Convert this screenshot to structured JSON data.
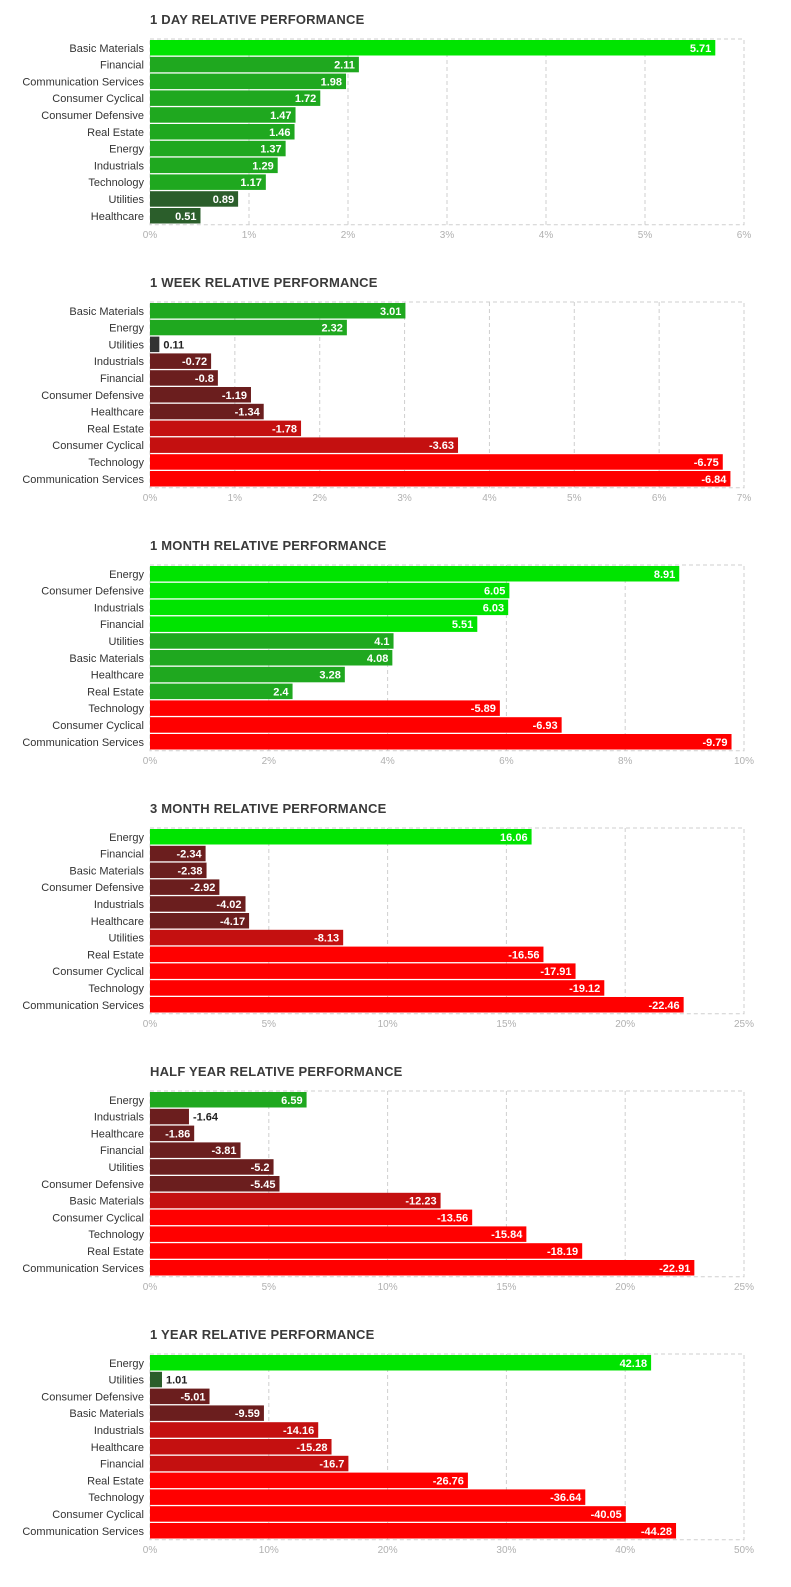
{
  "colors": {
    "pos_bright": "#00e400",
    "pos_mid": "#1fa81f",
    "pos_dark": "#2b5e2b",
    "neg_bright": "#ff0000",
    "neg_mid": "#c41010",
    "neg_dark": "#6b1e1e",
    "near_zero": "#333333",
    "grid": "#cfcfcf",
    "tick": "#b0b0b0"
  },
  "chart_data": [
    {
      "type": "bar",
      "orientation": "horizontal",
      "title": "1 DAY RELATIVE PERFORMANCE",
      "categories": [
        "Basic Materials",
        "Financial",
        "Communication Services",
        "Consumer Cyclical",
        "Consumer Defensive",
        "Real Estate",
        "Energy",
        "Industrials",
        "Technology",
        "Utilities",
        "Healthcare"
      ],
      "values": [
        5.71,
        2.11,
        1.98,
        1.72,
        1.47,
        1.46,
        1.37,
        1.29,
        1.17,
        0.89,
        0.51
      ],
      "value_labels": [
        "5.71",
        "2.11",
        "1.98",
        "1.72",
        "1.47",
        "1.46",
        "1.37",
        "1.29",
        "1.17",
        "0.89",
        "0.51"
      ],
      "xlim": [
        0,
        6
      ],
      "ticks": [
        "0%",
        "1%",
        "2%",
        "3%",
        "4%",
        "5%",
        "6%"
      ],
      "grid": true
    },
    {
      "type": "bar",
      "orientation": "horizontal",
      "title": "1 WEEK RELATIVE PERFORMANCE",
      "categories": [
        "Basic Materials",
        "Energy",
        "Utilities",
        "Industrials",
        "Financial",
        "Consumer Defensive",
        "Healthcare",
        "Real Estate",
        "Consumer Cyclical",
        "Technology",
        "Communication Services"
      ],
      "values": [
        3.01,
        2.32,
        0.11,
        -0.72,
        -0.8,
        -1.19,
        -1.34,
        -1.78,
        -3.63,
        -6.75,
        -6.84
      ],
      "value_labels": [
        "3.01",
        "2.32",
        "0.11",
        "-0.72",
        "-0.8",
        "-1.19",
        "-1.34",
        "-1.78",
        "-3.63",
        "-6.75",
        "-6.84"
      ],
      "xlim": [
        0,
        7
      ],
      "ticks": [
        "0%",
        "1%",
        "2%",
        "3%",
        "4%",
        "5%",
        "6%",
        "7%"
      ],
      "grid": true
    },
    {
      "type": "bar",
      "orientation": "horizontal",
      "title": "1 MONTH RELATIVE PERFORMANCE",
      "categories": [
        "Energy",
        "Consumer Defensive",
        "Industrials",
        "Financial",
        "Utilities",
        "Basic Materials",
        "Healthcare",
        "Real Estate",
        "Technology",
        "Consumer Cyclical",
        "Communication Services"
      ],
      "values": [
        8.91,
        6.05,
        6.03,
        5.51,
        4.1,
        4.08,
        3.28,
        2.4,
        -5.89,
        -6.93,
        -9.79
      ],
      "value_labels": [
        "8.91",
        "6.05",
        "6.03",
        "5.51",
        "4.1",
        "4.08",
        "3.28",
        "2.4",
        "-5.89",
        "-6.93",
        "-9.79"
      ],
      "xlim": [
        0,
        10
      ],
      "ticks": [
        "0%",
        "2%",
        "4%",
        "6%",
        "8%",
        "10%"
      ],
      "grid": true
    },
    {
      "type": "bar",
      "orientation": "horizontal",
      "title": "3 MONTH RELATIVE PERFORMANCE",
      "categories": [
        "Energy",
        "Financial",
        "Basic Materials",
        "Consumer Defensive",
        "Industrials",
        "Healthcare",
        "Utilities",
        "Real Estate",
        "Consumer Cyclical",
        "Technology",
        "Communication Services"
      ],
      "values": [
        16.06,
        -2.34,
        -2.38,
        -2.92,
        -4.02,
        -4.17,
        -8.13,
        -16.56,
        -17.91,
        -19.12,
        -22.46
      ],
      "value_labels": [
        "16.06",
        "-2.34",
        "-2.38",
        "-2.92",
        "-4.02",
        "-4.17",
        "-8.13",
        "-16.56",
        "-17.91",
        "-19.12",
        "-22.46"
      ],
      "xlim": [
        0,
        25
      ],
      "ticks": [
        "0%",
        "5%",
        "10%",
        "15%",
        "20%",
        "25%"
      ],
      "grid": true
    },
    {
      "type": "bar",
      "orientation": "horizontal",
      "title": "HALF YEAR RELATIVE PERFORMANCE",
      "categories": [
        "Energy",
        "Industrials",
        "Healthcare",
        "Financial",
        "Utilities",
        "Consumer Defensive",
        "Basic Materials",
        "Consumer Cyclical",
        "Technology",
        "Real Estate",
        "Communication Services"
      ],
      "values": [
        6.59,
        -1.64,
        -1.86,
        -3.81,
        -5.2,
        -5.45,
        -12.23,
        -13.56,
        -15.84,
        -18.19,
        -22.91
      ],
      "value_labels": [
        "6.59",
        "-1.64",
        "-1.86",
        "-3.81",
        "-5.2",
        "-5.45",
        "-12.23",
        "-13.56",
        "-15.84",
        "-18.19",
        "-22.91"
      ],
      "xlim": [
        0,
        25
      ],
      "ticks": [
        "0%",
        "5%",
        "10%",
        "15%",
        "20%",
        "25%"
      ],
      "grid": true
    },
    {
      "type": "bar",
      "orientation": "horizontal",
      "title": "1 YEAR RELATIVE PERFORMANCE",
      "categories": [
        "Energy",
        "Utilities",
        "Consumer Defensive",
        "Basic Materials",
        "Industrials",
        "Healthcare",
        "Financial",
        "Real Estate",
        "Technology",
        "Consumer Cyclical",
        "Communication Services"
      ],
      "values": [
        42.18,
        1.01,
        -5.01,
        -9.59,
        -14.16,
        -15.28,
        -16.7,
        -26.76,
        -36.64,
        -40.05,
        -44.28
      ],
      "value_labels": [
        "42.18",
        "1.01",
        "-5.01",
        "-9.59",
        "-14.16",
        "-15.28",
        "-16.7",
        "-26.76",
        "-36.64",
        "-40.05",
        "-44.28"
      ],
      "xlim": [
        0,
        50
      ],
      "ticks": [
        "0%",
        "10%",
        "20%",
        "30%",
        "40%",
        "50%"
      ],
      "grid": true
    }
  ]
}
